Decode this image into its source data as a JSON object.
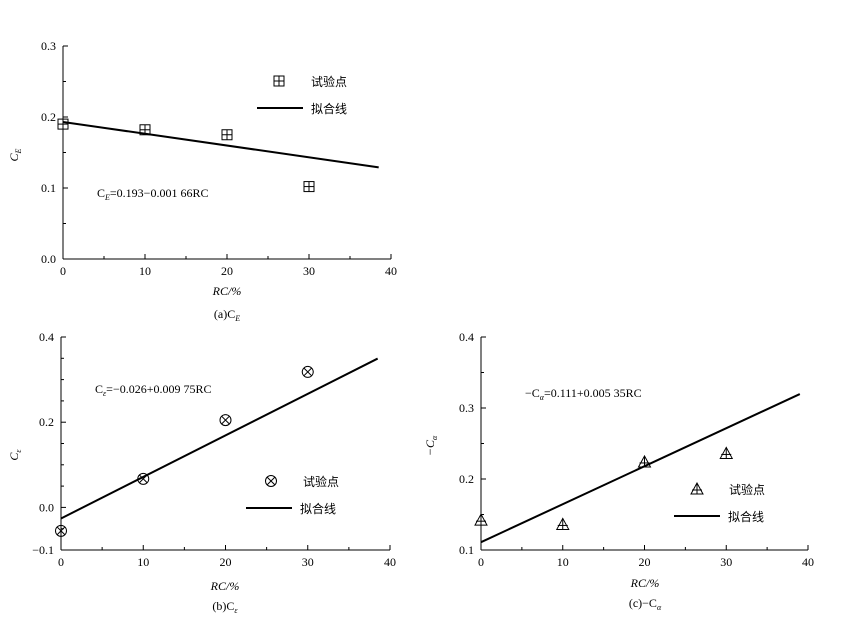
{
  "figure": {
    "legend_marker_label": "试验点",
    "legend_line_label": "拟合线"
  },
  "chart_data": [
    {
      "type": "scatter",
      "id": "a",
      "caption": "(a)C_E",
      "xlabel": "RC/%",
      "ylabel": "C_E",
      "xlim": [
        0,
        40
      ],
      "ylim": [
        0,
        0.3
      ],
      "xticks": [
        0,
        10,
        20,
        30,
        40
      ],
      "yticks": [
        0,
        0.1,
        0.2,
        0.3
      ],
      "xtick_labels": [
        "0",
        "10",
        "20",
        "30",
        "40"
      ],
      "ytick_labels": [
        "0.0",
        "0.1",
        "0.2",
        "0.3"
      ],
      "marker": "boxplus",
      "points": [
        {
          "x": 0,
          "y": 0.19
        },
        {
          "x": 10,
          "y": 0.182
        },
        {
          "x": 20,
          "y": 0.175
        },
        {
          "x": 30,
          "y": 0.102
        }
      ],
      "fit": {
        "intercept": 0.193,
        "slope": -0.00166,
        "x_range": [
          0,
          38.5
        ]
      },
      "equation": "C_E=0.193−0.001 66RC",
      "legend": "top-right"
    },
    {
      "type": "scatter",
      "id": "b",
      "caption": "(b)C_ε",
      "xlabel": "RC/%",
      "ylabel": "C_ε",
      "xlim": [
        0,
        40
      ],
      "ylim": [
        -0.1,
        0.4
      ],
      "xticks": [
        0,
        10,
        20,
        30,
        40
      ],
      "yticks": [
        -0.1,
        0,
        0.2,
        0.4
      ],
      "xtick_labels": [
        "0",
        "10",
        "20",
        "30",
        "40"
      ],
      "ytick_labels": [
        "−0.1",
        "0.0",
        "0.2",
        "0.4"
      ],
      "marker": "otimes",
      "points": [
        {
          "x": 0,
          "y": -0.055
        },
        {
          "x": 10,
          "y": 0.067
        },
        {
          "x": 20,
          "y": 0.205
        },
        {
          "x": 30,
          "y": 0.318
        }
      ],
      "fit": {
        "intercept": -0.026,
        "slope": 0.00975,
        "x_range": [
          0,
          38.5
        ]
      },
      "equation": "C_ε=−0.026+0.009 75RC",
      "legend": "bottom-right"
    },
    {
      "type": "scatter",
      "id": "c",
      "caption": "(c)−C_α",
      "xlabel": "RC/%",
      "ylabel": "−C_α",
      "xlim": [
        0,
        40
      ],
      "ylim": [
        0.1,
        0.4
      ],
      "xticks": [
        0,
        10,
        20,
        30,
        40
      ],
      "yticks": [
        0.1,
        0.2,
        0.3,
        0.4
      ],
      "xtick_labels": [
        "0",
        "10",
        "20",
        "30",
        "40"
      ],
      "ytick_labels": [
        "0.1",
        "0.2",
        "0.3",
        "0.4"
      ],
      "marker": "triangle-plus",
      "points": [
        {
          "x": 0,
          "y": 0.142
        },
        {
          "x": 10,
          "y": 0.136
        },
        {
          "x": 20,
          "y": 0.224
        },
        {
          "x": 30,
          "y": 0.236
        }
      ],
      "fit": {
        "intercept": 0.111,
        "slope": 0.00535,
        "x_range": [
          0,
          39
        ]
      },
      "equation": "−C_α=0.111+0.005 35RC",
      "legend": "bottom-right"
    }
  ]
}
